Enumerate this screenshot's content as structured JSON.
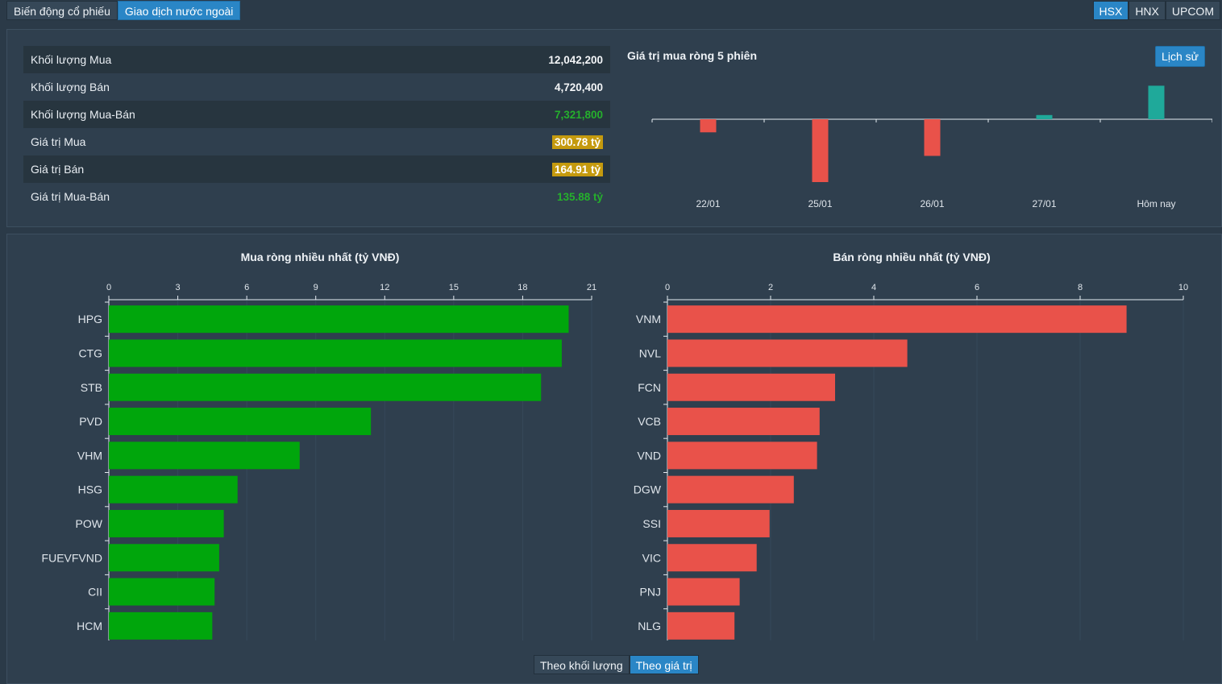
{
  "tabs": [
    "Biến động cổ phiếu",
    "Giao dịch nước ngoài"
  ],
  "exchanges": [
    "HSX",
    "HNX",
    "UPCOM"
  ],
  "stats": [
    {
      "label": "Khối lượng Mua",
      "value": "12,042,200",
      "style": "plain"
    },
    {
      "label": "Khối lượng Bán",
      "value": "4,720,400",
      "style": "plain"
    },
    {
      "label": "Khối lượng Mua-Bán",
      "value": "7,321,800",
      "style": "green"
    },
    {
      "label": "Giá trị Mua",
      "value": "300.78 tỷ",
      "style": "gold"
    },
    {
      "label": "Giá trị Bán",
      "value": "164.91 tỷ",
      "style": "gold"
    },
    {
      "label": "Giá trị Mua-Bán",
      "value": "135.88 tỷ",
      "style": "green"
    }
  ],
  "net5": {
    "title": "Giá trị mua ròng 5 phiên",
    "history_button": "Lịch sử"
  },
  "view_toggle": [
    "Theo khối lượng",
    "Theo giá trị"
  ],
  "colors": {
    "buy": "#00a60c",
    "sell": "#e9524a",
    "positive_net": "#1fa99a",
    "accent": "#2a86c6"
  },
  "chart_data": [
    {
      "type": "bar",
      "title": "",
      "categories": [
        "22/01",
        "25/01",
        "26/01",
        "27/01",
        "Hôm nay"
      ],
      "values": [
        -25,
        -120,
        -70,
        8,
        64
      ],
      "ylim": [
        -130,
        70
      ]
    },
    {
      "type": "bar",
      "orientation": "horizontal",
      "title": "Mua ròng nhiều nhất (tỷ VNĐ)",
      "categories": [
        "HPG",
        "CTG",
        "STB",
        "PVD",
        "VHM",
        "HSG",
        "POW",
        "FUEVFVND",
        "CII",
        "HCM"
      ],
      "values": [
        20.0,
        19.7,
        18.8,
        11.4,
        8.3,
        5.6,
        5.0,
        4.8,
        4.6,
        4.5
      ],
      "xlim": [
        0,
        21
      ],
      "ticks": [
        0,
        3,
        6,
        9,
        12,
        15,
        18,
        21
      ]
    },
    {
      "type": "bar",
      "orientation": "horizontal",
      "title": "Bán ròng nhiều nhất (tỷ VNĐ)",
      "categories": [
        "VNM",
        "NVL",
        "FCN",
        "VCB",
        "VND",
        "DGW",
        "SSI",
        "VIC",
        "PNJ",
        "NLG"
      ],
      "values": [
        8.9,
        4.65,
        3.25,
        2.95,
        2.9,
        2.45,
        1.98,
        1.73,
        1.4,
        1.3
      ],
      "xlim": [
        0,
        10
      ],
      "ticks": [
        0,
        2,
        4,
        6,
        8,
        10
      ]
    }
  ]
}
